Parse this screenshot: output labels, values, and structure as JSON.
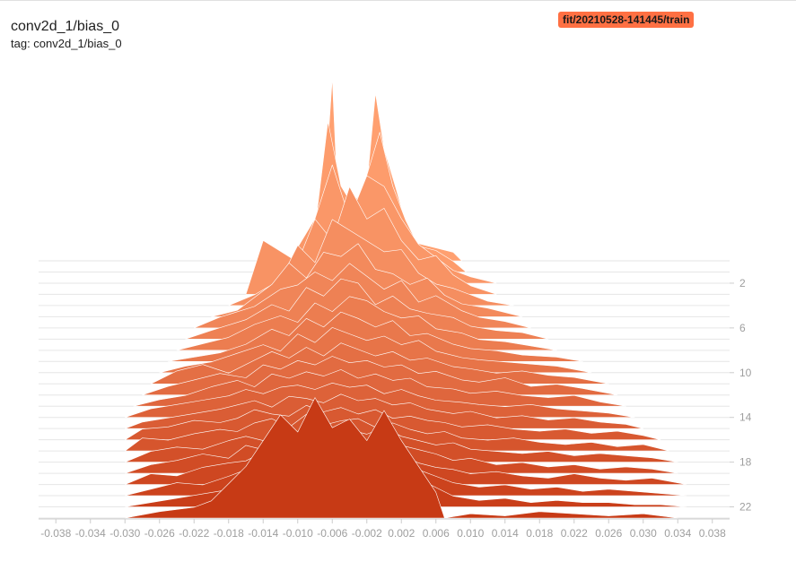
{
  "header": {
    "title": "conv2d_1/bias_0",
    "subtitle": "tag: conv2d_1/bias_0"
  },
  "run": {
    "label": "fit/20210528-141445/train",
    "color": "#ff7043"
  },
  "colors": {
    "oldest_step": "#ffa070",
    "newest_step": "#c73a15",
    "outline": "#ffffff",
    "grid": "#e6e6e6",
    "axis_text": "#9e9e9e"
  },
  "chart_data": {
    "type": "histogram-offset",
    "title": "conv2d_1/bias_0",
    "x_tick_labels": [
      "-0.038",
      "-0.034",
      "-0.030",
      "-0.026",
      "-0.022",
      "-0.018",
      "-0.014",
      "-0.010",
      "-0.006",
      "-0.002",
      "0.002",
      "0.006",
      "0.010",
      "0.014",
      "0.018",
      "0.022",
      "0.026",
      "0.030",
      "0.034",
      "0.038"
    ],
    "x_range": [
      -0.04,
      0.04
    ],
    "step_tick_labels": [
      "2",
      "6",
      "10",
      "14",
      "18",
      "22"
    ],
    "step_ticks": [
      2,
      6,
      10,
      14,
      18,
      22
    ],
    "steps": [
      0,
      23
    ],
    "step_series": [
      {
        "step": 0,
        "x": [
          -0.01,
          -0.007,
          -0.006,
          -0.0055,
          -0.004,
          -0.002,
          -0.001,
          0.0,
          0.0015,
          0.003,
          0.004,
          0.006,
          0.008,
          0.009
        ],
        "count": [
          0,
          2.5,
          8.5,
          4.0,
          2.5,
          3.5,
          7.8,
          5.2,
          3.2,
          1.0,
          0.8,
          0.6,
          0.4,
          0
        ]
      },
      {
        "step": 1,
        "x": [
          -0.012,
          -0.008,
          -0.0065,
          -0.005,
          -0.0035,
          -0.002,
          -0.0005,
          0.001,
          0.0025,
          0.004,
          0.006,
          0.008,
          0.0095
        ],
        "count": [
          0,
          2.0,
          7.0,
          4.0,
          3.0,
          4.5,
          6.5,
          4.0,
          2.4,
          1.2,
          1.0,
          0.5,
          0
        ]
      },
      {
        "step": 2,
        "x": [
          -0.015,
          -0.011,
          -0.008,
          -0.006,
          -0.004,
          -0.002,
          0.0,
          0.002,
          0.004,
          0.006,
          0.008,
          0.01,
          0.013
        ],
        "count": [
          0,
          1.0,
          3.0,
          5.5,
          3.0,
          5.0,
          4.5,
          3.0,
          1.8,
          1.2,
          0.6,
          0.3,
          0
        ]
      },
      {
        "step": 3,
        "x": [
          -0.016,
          -0.014,
          -0.01,
          -0.008,
          -0.006,
          -0.004,
          -0.002,
          0.0,
          0.002,
          0.004,
          0.006,
          0.008,
          0.01,
          0.013
        ],
        "count": [
          0,
          2.5,
          1.5,
          3.5,
          2.5,
          5.0,
          3.5,
          4.0,
          2.5,
          1.6,
          1.8,
          0.9,
          0.4,
          0
        ]
      },
      {
        "step": 4,
        "x": [
          -0.018,
          -0.015,
          -0.012,
          -0.01,
          -0.008,
          -0.006,
          -0.004,
          -0.002,
          0.0,
          0.002,
          0.004,
          0.006,
          0.008,
          0.01,
          0.012,
          0.015
        ],
        "count": [
          0,
          0.5,
          1.2,
          2.8,
          2.0,
          4.0,
          3.5,
          3.0,
          2.5,
          2.6,
          1.5,
          1.0,
          0.8,
          0.5,
          0.2,
          0
        ]
      },
      {
        "step": 5,
        "x": [
          -0.02,
          -0.017,
          -0.013,
          -0.011,
          -0.009,
          -0.007,
          -0.005,
          -0.003,
          -0.001,
          0.001,
          0.003,
          0.005,
          0.007,
          0.009,
          0.012,
          0.016
        ],
        "count": [
          0,
          0.3,
          1.5,
          2.5,
          1.8,
          3.0,
          2.8,
          3.4,
          2.2,
          2.0,
          1.5,
          1.8,
          1.0,
          0.6,
          0.4,
          0
        ]
      },
      {
        "step": 6,
        "x": [
          -0.022,
          -0.019,
          -0.015,
          -0.012,
          -0.01,
          -0.008,
          -0.006,
          -0.004,
          -0.002,
          0.0,
          0.002,
          0.004,
          0.006,
          0.009,
          0.011,
          0.014,
          0.017
        ],
        "count": [
          0,
          0.5,
          1.0,
          1.8,
          2.0,
          2.6,
          2.2,
          3.0,
          2.4,
          1.8,
          2.2,
          1.2,
          1.5,
          0.8,
          0.5,
          0.3,
          0
        ]
      },
      {
        "step": 7,
        "x": [
          -0.023,
          -0.02,
          -0.016,
          -0.013,
          -0.011,
          -0.009,
          -0.007,
          -0.005,
          -0.003,
          -0.001,
          0.001,
          0.003,
          0.005,
          0.008,
          0.01,
          0.013,
          0.016,
          0.019
        ],
        "count": [
          0,
          0.4,
          0.9,
          1.6,
          1.3,
          2.4,
          2.0,
          2.8,
          2.6,
          1.6,
          2.0,
          1.4,
          1.2,
          1.0,
          0.6,
          0.4,
          0.3,
          0
        ]
      },
      {
        "step": 8,
        "x": [
          -0.024,
          -0.021,
          -0.018,
          -0.015,
          -0.012,
          -0.01,
          -0.008,
          -0.006,
          -0.004,
          -0.002,
          0.0,
          0.002,
          0.004,
          0.006,
          0.009,
          0.011,
          0.014,
          0.017,
          0.02
        ],
        "count": [
          0,
          0.3,
          0.6,
          1.2,
          1.6,
          1.3,
          2.2,
          1.8,
          2.5,
          2.3,
          1.8,
          1.5,
          1.6,
          1.0,
          0.8,
          0.5,
          0.4,
          0.2,
          0
        ]
      },
      {
        "step": 9,
        "x": [
          -0.025,
          -0.022,
          -0.019,
          -0.016,
          -0.013,
          -0.011,
          -0.009,
          -0.007,
          -0.005,
          -0.003,
          -0.001,
          0.001,
          0.003,
          0.005,
          0.008,
          0.01,
          0.013,
          0.016,
          0.02,
          0.023
        ],
        "count": [
          0,
          0.2,
          0.4,
          0.8,
          1.5,
          1.2,
          2.0,
          1.6,
          2.3,
          2.0,
          1.6,
          1.9,
          1.2,
          1.3,
          0.8,
          0.6,
          0.5,
          0.3,
          0.2,
          0
        ]
      },
      {
        "step": 10,
        "x": [
          -0.026,
          -0.023,
          -0.02,
          -0.017,
          -0.014,
          -0.012,
          -0.01,
          -0.008,
          -0.006,
          -0.004,
          -0.002,
          0.0,
          0.002,
          0.004,
          0.006,
          0.009,
          0.011,
          0.014,
          0.017,
          0.02,
          0.024
        ],
        "count": [
          0,
          0.3,
          0.5,
          0.9,
          1.3,
          1.0,
          1.8,
          1.4,
          2.1,
          1.8,
          1.5,
          1.7,
          1.3,
          1.5,
          1.0,
          0.7,
          0.6,
          0.5,
          0.4,
          0.3,
          0
        ]
      },
      {
        "step": 11,
        "x": [
          -0.027,
          -0.024,
          -0.021,
          -0.018,
          -0.015,
          -0.013,
          -0.011,
          -0.009,
          -0.007,
          -0.005,
          -0.003,
          -0.001,
          0.001,
          0.003,
          0.005,
          0.008,
          0.01,
          0.013,
          0.016,
          0.019,
          0.022,
          0.026
        ],
        "count": [
          0,
          0.6,
          0.9,
          0.5,
          1.1,
          1.5,
          1.2,
          1.7,
          1.3,
          1.9,
          1.6,
          1.3,
          1.5,
          1.1,
          1.2,
          0.8,
          0.7,
          0.5,
          0.6,
          0.4,
          0.3,
          0
        ]
      },
      {
        "step": 12,
        "x": [
          -0.028,
          -0.025,
          -0.022,
          -0.019,
          -0.016,
          -0.014,
          -0.012,
          -0.01,
          -0.008,
          -0.006,
          -0.004,
          -0.002,
          0.0,
          0.002,
          0.004,
          0.006,
          0.009,
          0.011,
          0.014,
          0.017,
          0.02,
          0.023,
          0.027
        ],
        "count": [
          0,
          0.4,
          0.7,
          1.0,
          0.8,
          1.4,
          1.2,
          1.6,
          1.4,
          1.8,
          1.5,
          1.6,
          1.3,
          1.4,
          1.0,
          1.1,
          0.7,
          0.6,
          0.8,
          0.4,
          0.5,
          0.3,
          0
        ]
      },
      {
        "step": 13,
        "x": [
          -0.029,
          -0.026,
          -0.023,
          -0.02,
          -0.017,
          -0.015,
          -0.013,
          -0.011,
          -0.009,
          -0.007,
          -0.005,
          -0.003,
          -0.001,
          0.001,
          0.003,
          0.005,
          0.008,
          0.01,
          0.013,
          0.016,
          0.019,
          0.022,
          0.025,
          0.028
        ],
        "count": [
          0,
          0.3,
          0.5,
          0.9,
          1.2,
          0.9,
          1.5,
          1.3,
          1.6,
          1.4,
          1.7,
          1.3,
          1.5,
          1.2,
          1.3,
          0.9,
          0.8,
          0.6,
          0.7,
          0.5,
          0.4,
          0.5,
          0.2,
          0
        ]
      },
      {
        "step": 14,
        "x": [
          -0.03,
          -0.027,
          -0.024,
          -0.021,
          -0.018,
          -0.016,
          -0.014,
          -0.012,
          -0.01,
          -0.008,
          -0.006,
          -0.004,
          -0.002,
          0.0,
          0.002,
          0.004,
          0.006,
          0.009,
          0.011,
          0.014,
          0.017,
          0.02,
          0.023,
          0.026,
          0.029
        ],
        "count": [
          0,
          0.4,
          0.6,
          0.8,
          1.0,
          1.3,
          1.1,
          1.4,
          1.5,
          1.3,
          1.6,
          1.4,
          1.5,
          1.1,
          1.3,
          1.0,
          0.8,
          0.7,
          0.6,
          0.5,
          0.6,
          0.4,
          0.3,
          0.2,
          0
        ]
      },
      {
        "step": 15,
        "x": [
          -0.03,
          -0.028,
          -0.025,
          -0.022,
          -0.019,
          -0.017,
          -0.015,
          -0.013,
          -0.011,
          -0.009,
          -0.007,
          -0.005,
          -0.003,
          -0.001,
          0.001,
          0.003,
          0.005,
          0.008,
          0.01,
          0.013,
          0.016,
          0.019,
          0.022,
          0.025,
          0.028,
          0.03
        ],
        "count": [
          0,
          0.3,
          0.5,
          0.7,
          0.9,
          1.1,
          1.3,
          1.0,
          1.5,
          1.4,
          1.2,
          1.6,
          1.3,
          1.4,
          1.1,
          1.2,
          0.9,
          0.7,
          0.8,
          0.5,
          0.6,
          0.4,
          0.5,
          0.3,
          0.2,
          0
        ]
      },
      {
        "step": 16,
        "x": [
          -0.03,
          -0.028,
          -0.025,
          -0.022,
          -0.019,
          -0.017,
          -0.015,
          -0.013,
          -0.011,
          -0.009,
          -0.007,
          -0.005,
          -0.003,
          -0.001,
          0.001,
          0.003,
          0.005,
          0.007,
          0.009,
          0.012,
          0.015,
          0.018,
          0.021,
          0.024,
          0.027,
          0.03,
          0.032
        ],
        "count": [
          0,
          0.5,
          0.6,
          0.9,
          0.8,
          1.0,
          1.4,
          1.2,
          1.1,
          1.6,
          1.3,
          1.5,
          1.2,
          1.4,
          1.0,
          1.1,
          0.9,
          0.8,
          0.6,
          0.7,
          0.5,
          0.4,
          0.5,
          0.3,
          0.4,
          0.2,
          0
        ]
      },
      {
        "step": 17,
        "x": [
          -0.03,
          -0.028,
          -0.025,
          -0.022,
          -0.019,
          -0.017,
          -0.015,
          -0.013,
          -0.011,
          -0.009,
          -0.007,
          -0.005,
          -0.003,
          -0.001,
          0.001,
          0.003,
          0.005,
          0.007,
          0.009,
          0.012,
          0.015,
          0.018,
          0.021,
          0.024,
          0.027,
          0.03,
          0.033
        ],
        "count": [
          0,
          0.6,
          0.5,
          0.8,
          1.0,
          0.9,
          1.3,
          1.5,
          1.1,
          1.7,
          1.2,
          1.4,
          1.5,
          1.1,
          1.3,
          1.0,
          0.8,
          0.9,
          0.6,
          0.5,
          0.6,
          0.4,
          0.3,
          0.4,
          0.2,
          0.3,
          0
        ]
      },
      {
        "step": 18,
        "x": [
          -0.03,
          -0.027,
          -0.024,
          -0.021,
          -0.018,
          -0.016,
          -0.014,
          -0.012,
          -0.01,
          -0.008,
          -0.006,
          -0.004,
          -0.002,
          0.0,
          0.002,
          0.004,
          0.006,
          0.008,
          0.01,
          0.013,
          0.016,
          0.019,
          0.022,
          0.025,
          0.028,
          0.031,
          0.034
        ],
        "count": [
          0,
          0.5,
          0.7,
          0.6,
          1.0,
          1.2,
          1.0,
          1.6,
          1.3,
          1.8,
          1.4,
          1.5,
          1.3,
          1.6,
          1.2,
          1.0,
          0.8,
          0.9,
          0.6,
          0.5,
          0.4,
          0.5,
          0.3,
          0.4,
          0.3,
          0.2,
          0
        ]
      },
      {
        "step": 19,
        "x": [
          -0.03,
          -0.027,
          -0.024,
          -0.021,
          -0.018,
          -0.016,
          -0.014,
          -0.012,
          -0.01,
          -0.008,
          -0.006,
          -0.004,
          -0.002,
          0.0,
          0.002,
          0.004,
          0.006,
          0.008,
          0.01,
          0.013,
          0.016,
          0.019,
          0.022,
          0.025,
          0.028,
          0.031,
          0.034
        ],
        "count": [
          0,
          0.4,
          0.6,
          0.9,
          0.7,
          1.3,
          1.1,
          1.9,
          1.4,
          2.0,
          1.5,
          1.7,
          1.4,
          1.8,
          1.3,
          1.1,
          0.9,
          0.6,
          0.7,
          0.4,
          0.5,
          0.3,
          0.4,
          0.2,
          0.3,
          0.2,
          0
        ]
      },
      {
        "step": 20,
        "x": [
          -0.03,
          -0.027,
          -0.024,
          -0.021,
          -0.018,
          -0.016,
          -0.014,
          -0.012,
          -0.01,
          -0.008,
          -0.006,
          -0.004,
          -0.002,
          0.0,
          0.002,
          0.004,
          0.006,
          0.008,
          0.01,
          0.013,
          0.016,
          0.019,
          0.022,
          0.025,
          0.028,
          0.031,
          0.035
        ],
        "count": [
          0,
          0.5,
          0.4,
          0.8,
          1.0,
          1.1,
          1.5,
          2.2,
          1.6,
          2.5,
          1.8,
          2.0,
          1.6,
          2.1,
          1.4,
          1.0,
          0.8,
          0.7,
          0.5,
          0.6,
          0.4,
          0.3,
          0.5,
          0.3,
          0.2,
          0.3,
          0
        ]
      },
      {
        "step": 21,
        "x": [
          -0.03,
          -0.027,
          -0.024,
          -0.021,
          -0.018,
          -0.016,
          -0.014,
          -0.012,
          -0.01,
          -0.008,
          -0.006,
          -0.004,
          -0.002,
          0.0,
          0.002,
          0.004,
          0.006,
          0.008,
          0.011,
          0.014,
          0.017,
          0.02,
          0.023,
          0.026,
          0.029,
          0.032,
          0.035
        ],
        "count": [
          0,
          0.3,
          0.6,
          0.5,
          0.9,
          1.2,
          1.7,
          2.6,
          1.8,
          3.0,
          2.0,
          2.4,
          1.8,
          2.7,
          1.5,
          1.2,
          0.9,
          0.6,
          0.4,
          0.5,
          0.3,
          0.4,
          0.2,
          0.3,
          0.2,
          0.1,
          0
        ]
      },
      {
        "step": 22,
        "x": [
          -0.03,
          -0.027,
          -0.024,
          -0.021,
          -0.018,
          -0.016,
          -0.014,
          -0.012,
          -0.01,
          -0.008,
          -0.006,
          -0.004,
          -0.002,
          0.0,
          0.002,
          0.004,
          0.006,
          0.008,
          0.011,
          0.014,
          0.017,
          0.02,
          0.023,
          0.026,
          0.029,
          0.032,
          0.035
        ],
        "count": [
          0,
          0.2,
          0.4,
          0.6,
          0.8,
          1.4,
          2.0,
          3.2,
          2.2,
          3.8,
          2.3,
          2.8,
          2.0,
          3.4,
          1.7,
          1.3,
          0.9,
          0.5,
          0.3,
          0.4,
          0.2,
          0.3,
          0.2,
          0.2,
          0.1,
          0.1,
          0
        ]
      },
      {
        "step": 23,
        "x": [
          -0.03,
          -0.026,
          -0.022,
          -0.02,
          -0.018,
          -0.016,
          -0.014,
          -0.012,
          -0.01,
          -0.008,
          -0.006,
          -0.004,
          -0.002,
          0.0,
          0.002,
          0.004,
          0.006,
          0.007,
          0.01,
          0.014,
          0.018,
          0.022,
          0.026,
          0.03,
          0.034
        ],
        "count": [
          0,
          0.3,
          0.5,
          0.8,
          1.6,
          2.4,
          3.6,
          4.8,
          4.0,
          5.6,
          4.2,
          4.6,
          3.6,
          5.0,
          3.6,
          2.4,
          1.2,
          0,
          0.2,
          0.1,
          0.3,
          0.2,
          0.1,
          0.2,
          0
        ]
      }
    ]
  }
}
